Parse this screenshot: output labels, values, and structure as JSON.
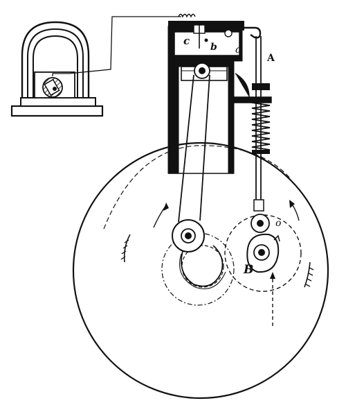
{
  "figure": {
    "labels": {
      "c": "c",
      "b": "b",
      "a": "a",
      "A": "A",
      "o": "o",
      "B": "B"
    },
    "colors": {
      "ink": "#111111",
      "paper": "#ffffff"
    }
  }
}
